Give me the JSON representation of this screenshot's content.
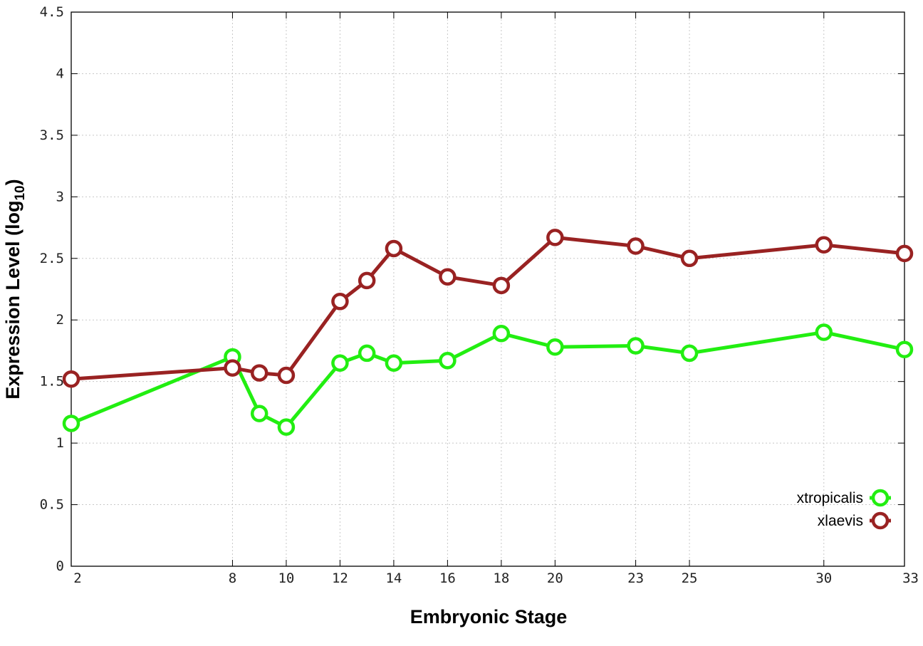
{
  "chart_data": {
    "type": "line",
    "title": "",
    "xlabel": "Embryonic Stage",
    "ylabel_main": "Expression Level (log",
    "ylabel_sub": "10",
    "ylabel_close": ")",
    "ylim": [
      0,
      4.5
    ],
    "yticks": [
      0,
      0.5,
      1,
      1.5,
      2,
      2.5,
      3,
      3.5,
      4,
      4.5
    ],
    "ytick_labels": [
      "0",
      "0.5",
      "1",
      "1.5",
      "2",
      "2.5",
      "3",
      "3.5",
      "4",
      "4.5"
    ],
    "xlim": [
      2,
      33
    ],
    "xticks": [
      2,
      8,
      10,
      12,
      14,
      16,
      18,
      20,
      23,
      25,
      30,
      33
    ],
    "xtick_labels": [
      "2",
      "8",
      "10",
      "12",
      "14",
      "16",
      "18",
      "20",
      "23",
      "25",
      "30",
      "33"
    ],
    "grid": true,
    "legend_position": "bottom-right",
    "x": [
      2,
      8,
      9,
      10,
      12,
      13,
      14,
      16,
      18,
      20,
      23,
      25,
      30,
      33
    ],
    "series": [
      {
        "name": "xtropicalis",
        "color": "#22ee11",
        "values": [
          1.16,
          1.7,
          1.24,
          1.13,
          1.65,
          1.73,
          1.65,
          1.67,
          1.89,
          1.78,
          1.79,
          1.73,
          1.9,
          1.76
        ]
      },
      {
        "name": "xlaevis",
        "color": "#992222",
        "values": [
          1.52,
          1.61,
          1.57,
          1.55,
          2.15,
          2.32,
          2.58,
          2.35,
          2.28,
          2.67,
          2.6,
          2.5,
          2.61,
          2.54
        ]
      }
    ]
  }
}
